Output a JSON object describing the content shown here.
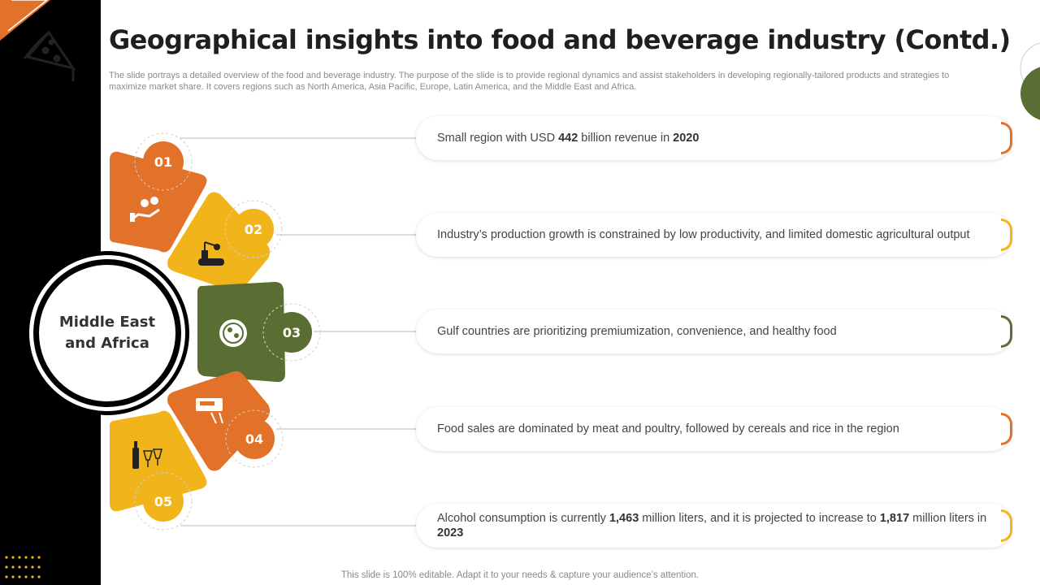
{
  "title": "Geographical insights into food and beverage industry (Contd.)",
  "subtitle": "The slide portrays a detailed overview of the food and beverage industry. The purpose of the slide is to provide regional dynamics and assist stakeholders in developing regionally-tailored products and strategies to maximize market share. It covers regions such as North America, Asia Pacific, Europe, Latin America, and the Middle East and Africa.",
  "center": {
    "line1": "Middle East",
    "line2": "and Africa"
  },
  "colors": {
    "orange": "#e2712a",
    "yellow": "#f1b51b",
    "green": "#5a6e33",
    "black": "#000000"
  },
  "items": [
    {
      "number": "01",
      "icon": "money-hand-icon",
      "color": "#e2712a",
      "parts": [
        {
          "text": "Small region with USD "
        },
        {
          "text": "442",
          "bold": true
        },
        {
          "text": " billion revenue in "
        },
        {
          "text": "2020",
          "bold": true
        }
      ]
    },
    {
      "number": "02",
      "icon": "production-line-icon",
      "color": "#f1b51b",
      "parts": [
        {
          "text": "Industry’s production growth is constrained by low productivity, and limited domestic agricultural output"
        }
      ]
    },
    {
      "number": "03",
      "icon": "food-plate-icon",
      "color": "#5a6e33",
      "parts": [
        {
          "text": "Gulf countries are prioritizing premiumization, convenience, and healthy food"
        }
      ]
    },
    {
      "number": "04",
      "icon": "food-truck-icon",
      "color": "#e2712a",
      "parts": [
        {
          "text": "Food sales are dominated by meat and poultry, followed by cereals and rice in the region"
        }
      ]
    },
    {
      "number": "05",
      "icon": "wine-glasses-icon",
      "color": "#f1b51b",
      "parts": [
        {
          "text": "Alcohol consumption is currently "
        },
        {
          "text": "1,463",
          "bold": true
        },
        {
          "text": " million liters, and it is projected to increase to "
        },
        {
          "text": "1,817",
          "bold": true
        },
        {
          "text": " million liters in "
        },
        {
          "text": "2023",
          "bold": true
        }
      ]
    }
  ],
  "footer": "This slide is 100% editable. Adapt it to your needs & capture your audience’s attention."
}
